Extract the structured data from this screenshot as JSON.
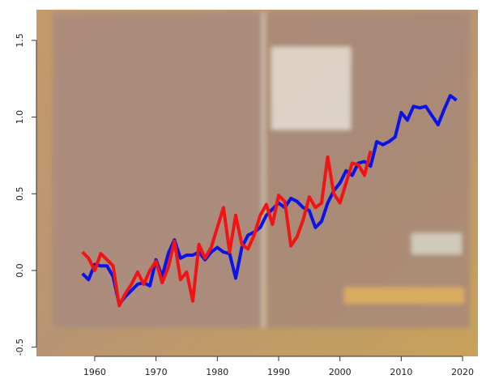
{
  "chart_data": {
    "type": "line",
    "x": [
      1958,
      1959,
      1960,
      1961,
      1962,
      1963,
      1964,
      1965,
      1966,
      1967,
      1968,
      1969,
      1970,
      1971,
      1972,
      1973,
      1974,
      1975,
      1976,
      1977,
      1978,
      1979,
      1980,
      1981,
      1982,
      1983,
      1984,
      1985,
      1986,
      1987,
      1988,
      1989,
      1990,
      1991,
      1992,
      1993,
      1994,
      1995,
      1996,
      1997,
      1998,
      1999,
      2000,
      2001,
      2002,
      2003,
      2004,
      2005,
      2006,
      2007,
      2008,
      2009,
      2010,
      2011,
      2012,
      2013,
      2014,
      2015,
      2016,
      2017,
      2018,
      2019
    ],
    "series": [
      {
        "color": "#0a14e6",
        "values": [
          -0.02,
          -0.06,
          0.04,
          0.03,
          0.03,
          -0.04,
          -0.22,
          -0.17,
          -0.13,
          -0.09,
          -0.08,
          -0.1,
          0.07,
          -0.04,
          0.11,
          0.2,
          0.08,
          0.1,
          0.1,
          0.12,
          0.07,
          0.12,
          0.15,
          0.12,
          0.11,
          -0.05,
          0.15,
          0.23,
          0.25,
          0.28,
          0.36,
          0.4,
          0.44,
          0.41,
          0.47,
          0.45,
          0.41,
          0.39,
          0.28,
          0.32,
          0.44,
          0.52,
          0.57,
          0.65,
          0.62,
          0.7,
          0.71,
          0.68,
          0.84,
          0.82,
          0.84,
          0.87,
          1.03,
          0.98,
          1.07,
          1.06,
          1.07,
          1.01,
          0.95,
          1.05,
          1.14,
          1.11
        ]
      },
      {
        "color": "#f01414",
        "values": [
          0.12,
          0.08,
          0.0,
          0.11,
          0.07,
          0.03,
          -0.23,
          -0.15,
          -0.09,
          -0.01,
          -0.09,
          0.0,
          0.06,
          -0.08,
          0.02,
          0.19,
          -0.06,
          -0.01,
          -0.2,
          0.17,
          0.08,
          0.15,
          0.28,
          0.41,
          0.12,
          0.36,
          0.17,
          0.14,
          0.23,
          0.36,
          0.43,
          0.3,
          0.49,
          0.45,
          0.16,
          0.22,
          0.33,
          0.48,
          0.41,
          0.44,
          0.74,
          0.5,
          0.44,
          0.57,
          0.7,
          0.69,
          0.62,
          0.78,
          null,
          null,
          null,
          null,
          null,
          null,
          null,
          null,
          null,
          null,
          null,
          null,
          null,
          null
        ]
      }
    ],
    "xlim": [
      1950.5,
      2022.5
    ],
    "ylim": [
      -0.56,
      1.7
    ],
    "xticks": [
      1960,
      1970,
      1980,
      1990,
      2000,
      2010,
      2020
    ],
    "yticks": [
      -0.5,
      {
        "value": 0,
        "label": "0.0"
      },
      0.5,
      {
        "value": 1,
        "label": "1.0"
      },
      1.5
    ]
  }
}
